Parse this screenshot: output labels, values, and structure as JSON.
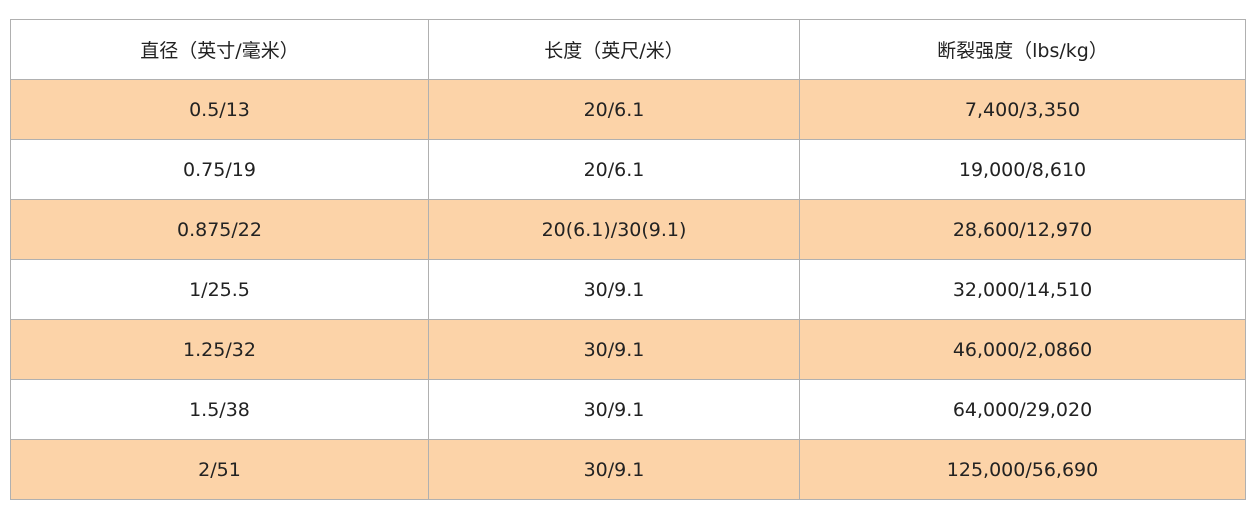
{
  "table": {
    "headers": [
      "直径（英寸/毫米）",
      "长度（英尺/米）",
      "断裂强度（lbs/kg）"
    ],
    "rows": [
      [
        "0.5/13",
        "20/6.1",
        "7,400/3,350"
      ],
      [
        "0.75/19",
        "20/6.1",
        "19,000/8,610"
      ],
      [
        "0.875/22",
        "20(6.1)/30(9.1)",
        "28,600/12,970"
      ],
      [
        "1/25.5",
        "30/9.1",
        "32,000/14,510"
      ],
      [
        "1.25/32",
        "30/9.1",
        "46,000/2,0860"
      ],
      [
        "1.5/38",
        "30/9.1",
        "64,000/29,020"
      ],
      [
        "2/51",
        "30/9.1",
        "125,000/56,690"
      ]
    ],
    "colors": {
      "stripe": "#fcd3a8",
      "border": "#b0b0b0"
    }
  }
}
